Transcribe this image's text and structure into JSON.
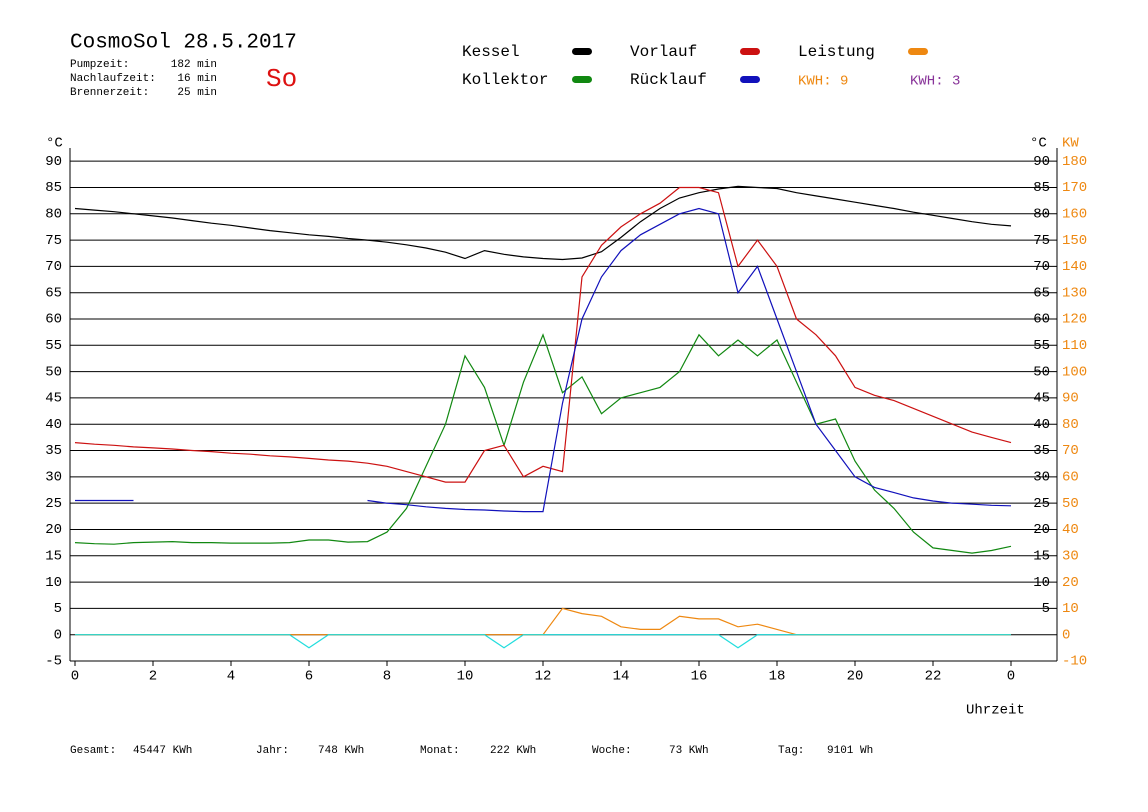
{
  "header": {
    "title": "CosmoSol 28.5.2017",
    "day": "So",
    "stats": [
      {
        "label": "Pumpzeit:",
        "value": "182 min"
      },
      {
        "label": "Nachlaufzeit:",
        "value": "16 min"
      },
      {
        "label": "Brennerzeit:",
        "value": "25 min"
      }
    ]
  },
  "kwh": [
    {
      "text": "KWH: 9",
      "color": "#ee8811"
    },
    {
      "text": "KWH: 3",
      "color": "#883399"
    }
  ],
  "totals": [
    {
      "label": "Gesamt:",
      "value": "45447 KWh"
    },
    {
      "label": "Jahr:",
      "value": "748 KWh"
    },
    {
      "label": "Monat:",
      "value": "222 KWh"
    },
    {
      "label": "Woche:",
      "value": "73 KWh"
    },
    {
      "label": "Tag:",
      "value": "9101 Wh"
    }
  ],
  "chart_data": {
    "type": "line",
    "ylabel": "°C",
    "ylabel_right": "°C",
    "y2label": "KW",
    "xlabel": "Uhrzeit",
    "x": [
      0,
      0.5,
      1,
      1.5,
      2,
      2.5,
      3,
      3.5,
      4,
      4.5,
      5,
      5.5,
      6,
      6.5,
      7,
      7.5,
      8,
      8.5,
      9,
      9.5,
      10,
      10.5,
      11,
      11.5,
      12,
      12.5,
      13,
      13.5,
      14,
      14.5,
      15,
      15.5,
      16,
      16.5,
      17,
      17.5,
      18,
      18.5,
      19,
      19.5,
      20,
      20.5,
      21,
      21.5,
      22,
      22.5,
      23,
      23.5,
      24
    ],
    "series": [
      {
        "name": "Kessel",
        "color": "#000000",
        "values": [
          81,
          80.7,
          80.4,
          80,
          79.6,
          79.2,
          78.7,
          78.2,
          77.8,
          77.3,
          76.8,
          76.4,
          76,
          75.7,
          75.3,
          75,
          74.6,
          74.1,
          73.5,
          72.7,
          71.5,
          73,
          72.3,
          71.8,
          71.5,
          71.3,
          71.6,
          72.8,
          75.5,
          78.5,
          81,
          83,
          84,
          84.7,
          85.2,
          85,
          84.8,
          84,
          83.4,
          82.8,
          82.2,
          81.6,
          81,
          80.3,
          79.7,
          79.1,
          78.5,
          78,
          77.7
        ]
      },
      {
        "name": "Kollektor",
        "color": "#118811",
        "values": [
          17.5,
          17.3,
          17.2,
          17.5,
          17.6,
          17.7,
          17.5,
          17.5,
          17.4,
          17.4,
          17.4,
          17.5,
          18,
          18,
          17.6,
          17.7,
          19.5,
          24,
          32,
          40,
          53,
          47,
          36,
          48,
          57,
          46,
          49,
          42,
          45,
          46,
          47,
          50,
          57,
          53,
          56,
          53,
          56,
          48,
          40,
          41,
          33,
          27.5,
          24,
          19.5,
          16.5,
          16,
          15.5,
          16,
          16.8
        ]
      },
      {
        "name": "Vorlauf",
        "color": "#cc1111",
        "values": [
          36.5,
          36.2,
          36,
          35.7,
          35.5,
          35.3,
          35,
          34.8,
          34.5,
          34.3,
          34,
          33.8,
          33.5,
          33.2,
          33,
          32.6,
          32,
          31,
          30,
          29,
          29,
          35,
          36,
          30,
          32,
          31,
          68,
          74,
          77.5,
          80,
          82,
          85,
          85,
          84,
          70,
          75,
          70,
          60,
          57,
          53,
          47,
          45.5,
          44.5,
          43,
          41.5,
          40,
          38.5,
          37.5,
          36.5
        ]
      },
      {
        "name": "Rücklauf",
        "color": "#1111bb",
        "values": [
          25.5,
          25.5,
          25.5,
          25.5,
          null,
          null,
          null,
          null,
          null,
          null,
          null,
          null,
          null,
          null,
          null,
          25.5,
          25,
          24.7,
          24.3,
          24,
          23.8,
          23.7,
          23.5,
          23.4,
          23.4,
          44,
          60,
          68,
          73,
          76,
          78,
          80,
          81,
          80,
          65,
          70,
          60,
          50,
          40,
          35,
          30,
          28,
          27,
          26,
          25.4,
          25,
          24.8,
          24.6,
          24.5
        ]
      },
      {
        "name": "Leistung",
        "color": "#ee8811",
        "axis": "y2",
        "values": [
          0,
          0,
          0,
          0,
          0,
          0,
          0,
          0,
          0,
          0,
          0,
          0,
          0,
          0,
          0,
          0,
          0,
          0,
          0,
          0,
          0,
          0,
          0,
          0,
          0,
          10,
          8,
          7,
          3,
          2,
          2,
          7,
          6,
          6,
          3,
          4,
          2,
          0,
          0,
          0,
          0,
          0,
          0,
          0,
          0,
          0,
          0,
          0,
          0
        ]
      },
      {
        "color": "#22dddd",
        "values": [
          0,
          0,
          0,
          0,
          0,
          0,
          0,
          0,
          0,
          0,
          0,
          0,
          -2.5,
          0,
          0,
          0,
          0,
          0,
          0,
          0,
          0,
          0,
          -2.5,
          0,
          0,
          0,
          0,
          0,
          0,
          0,
          0,
          0,
          0,
          0,
          -2.5,
          0,
          0,
          0,
          0,
          0,
          0,
          0,
          0,
          0,
          0,
          0,
          0,
          0,
          0
        ]
      }
    ],
    "xlim": [
      0,
      24
    ],
    "xticks": [
      0,
      2,
      4,
      6,
      8,
      10,
      12,
      14,
      16,
      18,
      20,
      22,
      {
        "value": 24,
        "label": "0"
      }
    ],
    "ylim": [
      -5,
      92.5
    ],
    "yticks": [
      -5,
      0,
      5,
      10,
      15,
      20,
      25,
      30,
      35,
      40,
      45,
      50,
      55,
      60,
      65,
      70,
      75,
      80,
      85,
      90
    ],
    "yticks_right": [
      5,
      10,
      15,
      20,
      25,
      30,
      35,
      40,
      45,
      50,
      55,
      60,
      65,
      70,
      75,
      80,
      85,
      90
    ],
    "y2lim": [
      -10,
      185
    ],
    "y2ticks": [
      -10,
      0,
      10,
      20,
      30,
      40,
      50,
      60,
      70,
      80,
      90,
      100,
      110,
      120,
      130,
      140,
      150,
      160,
      170,
      180
    ],
    "grid": true
  }
}
